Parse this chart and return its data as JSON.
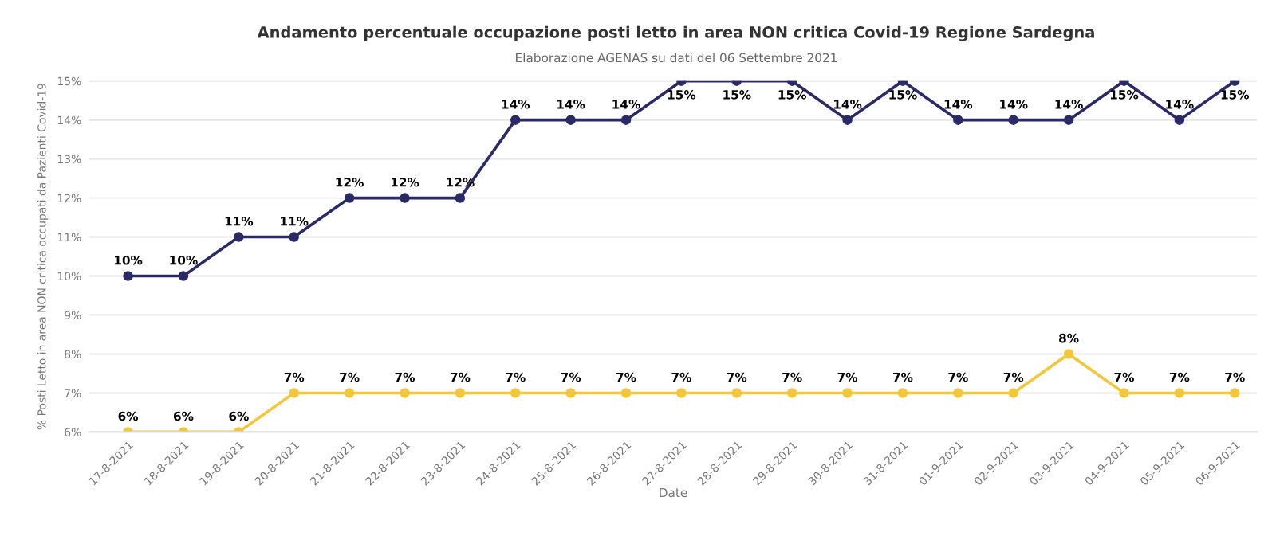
{
  "chart_data": {
    "type": "line",
    "title": "Andamento percentuale occupazione posti letto in area NON critica Covid-19 Regione Sardegna",
    "subtitle": "Elaborazione AGENAS su dati del 06 Settembre 2021",
    "xlabel": "Date",
    "ylabel": "% Posti Letto in area NON critica occupati da Pazienti Covid-19",
    "categories": [
      "17-8-2021",
      "18-8-2021",
      "19-8-2021",
      "20-8-2021",
      "21-8-2021",
      "22-8-2021",
      "23-8-2021",
      "24-8-2021",
      "25-8-2021",
      "26-8-2021",
      "27-8-2021",
      "28-8-2021",
      "29-8-2021",
      "30-8-2021",
      "31-8-2021",
      "01-9-2021",
      "02-9-2021",
      "03-9-2021",
      "04-9-2021",
      "05-9-2021",
      "06-9-2021"
    ],
    "series": [
      {
        "color": "#2b2966",
        "values": [
          10,
          10,
          11,
          11,
          12,
          12,
          12,
          14,
          14,
          14,
          15,
          15,
          15,
          14,
          15,
          14,
          14,
          14,
          15,
          14,
          15
        ],
        "value_labels": [
          "10%",
          "10%",
          "11%",
          "11%",
          "12%",
          "12%",
          "12%",
          "14%",
          "14%",
          "14%",
          "15%",
          "15%",
          "15%",
          "14%",
          "15%",
          "14%",
          "14%",
          "14%",
          "15%",
          "14%",
          "15%"
        ]
      },
      {
        "color": "#f2c73c",
        "values": [
          6,
          6,
          6,
          7,
          7,
          7,
          7,
          7,
          7,
          7,
          7,
          7,
          7,
          7,
          7,
          7,
          7,
          8,
          7,
          7,
          7
        ],
        "value_labels": [
          "6%",
          "6%",
          "6%",
          "7%",
          "7%",
          "7%",
          "7%",
          "7%",
          "7%",
          "7%",
          "7%",
          "7%",
          "7%",
          "7%",
          "7%",
          "7%",
          "7%",
          "8%",
          "7%",
          "7%",
          "7%"
        ]
      }
    ],
    "ylim": [
      6,
      15
    ],
    "yticks": [
      {
        "value": 6,
        "label": "6%"
      },
      {
        "value": 7,
        "label": "7%"
      },
      {
        "value": 8,
        "label": "8%"
      },
      {
        "value": 9,
        "label": "9%"
      },
      {
        "value": 10,
        "label": "10%"
      },
      {
        "value": 11,
        "label": "11%"
      },
      {
        "value": 12,
        "label": "12%"
      },
      {
        "value": 13,
        "label": "13%"
      },
      {
        "value": 14,
        "label": "14%"
      },
      {
        "value": 15,
        "label": "15%"
      }
    ],
    "grid": "y",
    "marker": "circle",
    "line_style": "solid"
  }
}
